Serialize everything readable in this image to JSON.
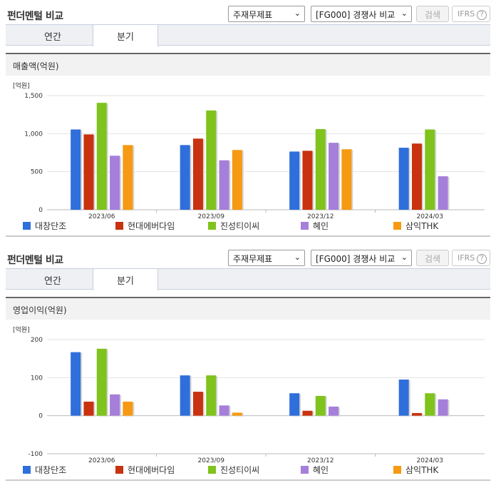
{
  "header": {
    "title": "펀더멘털 비교",
    "select_statement": "주재무제표",
    "select_compare": "[FG000] 경쟁사 비교",
    "search_label": "검색",
    "ifrs_label": "IFRS",
    "help_glyph": "?"
  },
  "tabs": {
    "annual": "연간",
    "quarter": "분기",
    "active": "quarter"
  },
  "icons": {
    "dropdown": "chevron-down-icon",
    "help": "question-circle-icon"
  },
  "colors": {
    "대창단조": "#2f6fdb",
    "현대에버다임": "#c8320f",
    "진성티이씨": "#7fc31c",
    "혜인": "#a57fd9",
    "삼익THK": "#f59a12"
  },
  "chart_data": [
    {
      "type": "bar",
      "title": "매출액(억원)",
      "unit": "[억원]",
      "categories": [
        "2023/06",
        "2023/09",
        "2023/12",
        "2024/03"
      ],
      "ylim": [
        0,
        1500
      ],
      "yticks": [
        0,
        500,
        1000,
        1500
      ],
      "ytick_labels": [
        "0",
        "500",
        "1,000",
        "1,500"
      ],
      "grid": true,
      "legend_position": "bottom",
      "series": [
        {
          "name": "대창단조",
          "values": [
            1055,
            850,
            765,
            815
          ]
        },
        {
          "name": "현대에버다임",
          "values": [
            990,
            935,
            775,
            870
          ]
        },
        {
          "name": "진성티이씨",
          "values": [
            1405,
            1305,
            1060,
            1055
          ]
        },
        {
          "name": "혜인",
          "values": [
            710,
            650,
            880,
            440
          ]
        },
        {
          "name": "삼익THK",
          "values": [
            850,
            785,
            795,
            null
          ]
        }
      ]
    },
    {
      "type": "bar",
      "title": "영업이익(억원)",
      "unit": "[억원]",
      "categories": [
        "2023/06",
        "2023/09",
        "2023/12",
        "2024/03"
      ],
      "ylim": [
        -100,
        200
      ],
      "yticks": [
        -100,
        0,
        100,
        200
      ],
      "ytick_labels": [
        "-100",
        "0",
        "100",
        "200"
      ],
      "grid": true,
      "legend_position": "bottom",
      "series": [
        {
          "name": "대창단조",
          "values": [
            167,
            106,
            59,
            95
          ]
        },
        {
          "name": "현대에버다임",
          "values": [
            37,
            63,
            13,
            7
          ]
        },
        {
          "name": "진성티이씨",
          "values": [
            176,
            106,
            52,
            59
          ]
        },
        {
          "name": "혜인",
          "values": [
            56,
            27,
            24,
            43
          ]
        },
        {
          "name": "삼익THK",
          "values": [
            37,
            8,
            null,
            null
          ]
        }
      ]
    }
  ]
}
